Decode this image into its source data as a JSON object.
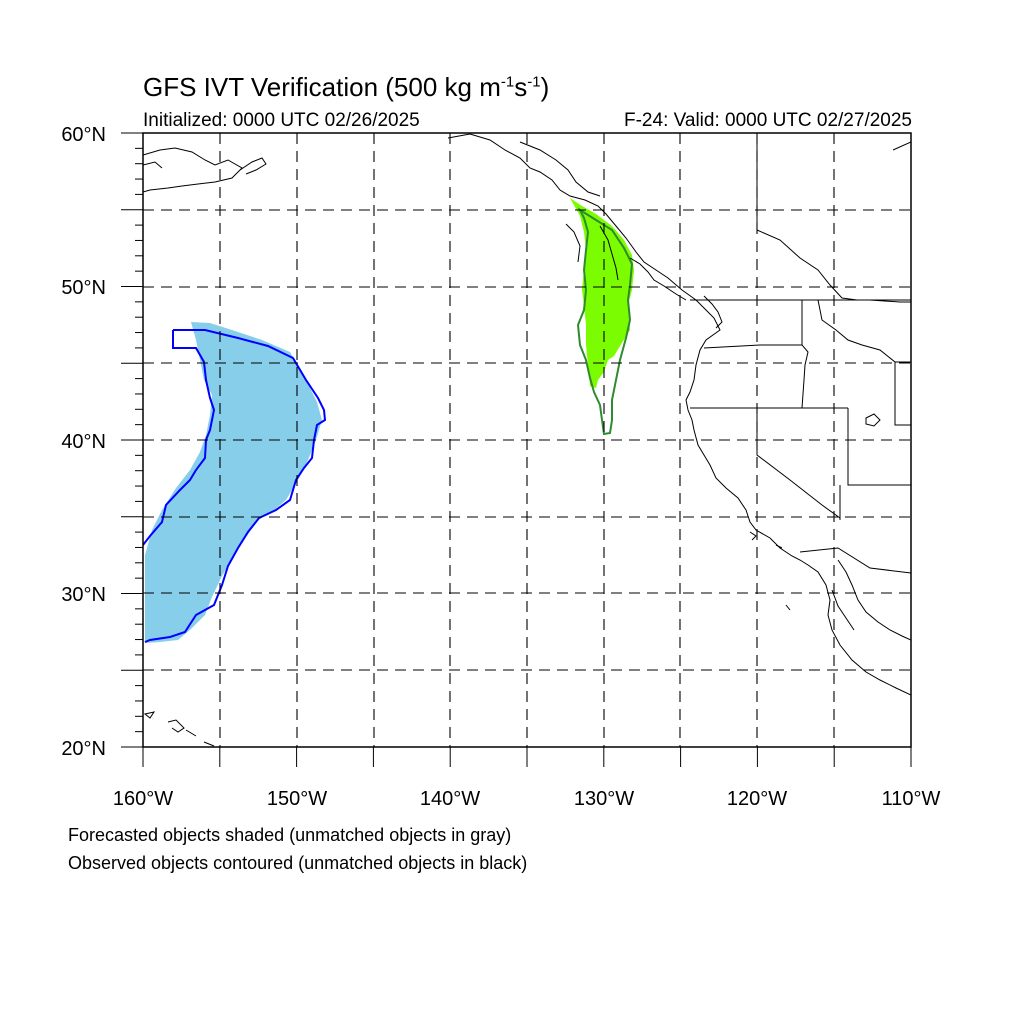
{
  "title": {
    "main": "GFS IVT Verification (500 kg m",
    "sup1": "-1",
    "mid": "s",
    "sup2": "-1",
    "end": ")"
  },
  "subtitle_left": "Initialized: 0000 UTC 02/26/2025",
  "subtitle_right": "F-24: Valid: 0000 UTC 02/27/2025",
  "notes": [
    "Forecasted objects shaded (unmatched objects in gray)",
    "Observed objects contoured (unmatched objects in black)"
  ],
  "map": {
    "lon_range": [
      -160,
      -110
    ],
    "lat_range": [
      20,
      60
    ],
    "lon_ticks": [
      "160°W",
      "150°W",
      "140°W",
      "130°W",
      "120°W",
      "110°W"
    ],
    "lat_ticks": [
      "60°N",
      "50°N",
      "40°N",
      "30°N",
      "20°N"
    ],
    "colors": {
      "forecast_object_1": "#87ceeb",
      "observed_object_1": "#0000ff",
      "forecast_object_2": "#7cfc00",
      "observed_object_2": "#2e8b2e"
    }
  }
}
